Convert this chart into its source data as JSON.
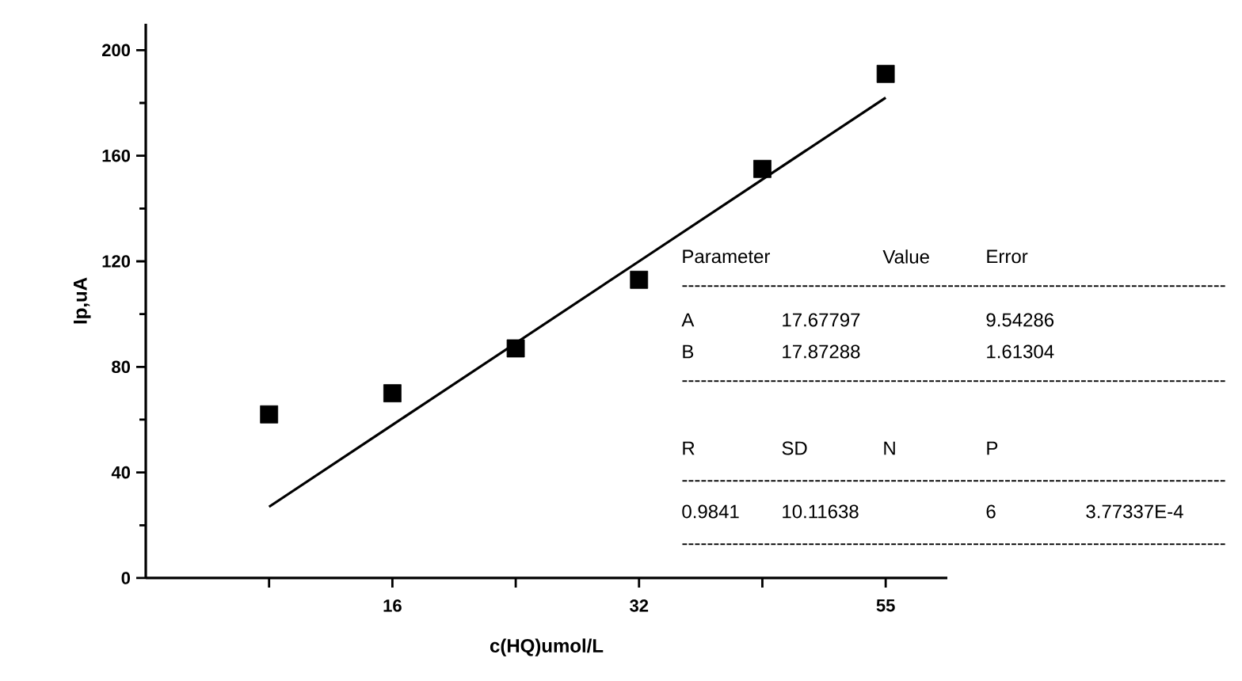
{
  "chart_data": {
    "type": "scatter",
    "xlabel": "c(HQ)umol/L",
    "ylabel": "Ip,uA",
    "categories": [
      null,
      "16",
      null,
      "32",
      null,
      "55"
    ],
    "ylim": [
      0,
      210
    ],
    "yticks": [
      0,
      40,
      80,
      120,
      160,
      200
    ],
    "series": [
      {
        "color": "#000000",
        "marker": "square",
        "values": [
          62,
          70,
          87,
          113,
          155,
          191
        ]
      },
      {
        "type": "line",
        "color": "#000000",
        "line_style": "solid",
        "values": [
          27,
          58,
          89,
          120,
          151,
          182
        ]
      }
    ],
    "annotations": [
      "Parameter",
      "Value",
      "Error",
      "A",
      "17.67797",
      "9.54286",
      "B",
      "17.87288",
      "1.61304",
      "R",
      "SD",
      "N",
      "P",
      "0.9841",
      "10.11638",
      "6",
      "3.77337E-4",
      "--------------------------------------------------------------------------------------",
      "--------------------------------------------------------------------------------------",
      "--------------------------------------------------------------------------------------",
      "--------------------------------------------------------------------------------------"
    ]
  }
}
